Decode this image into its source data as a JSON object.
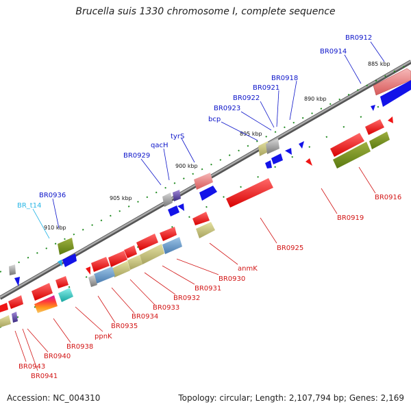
{
  "title": "Brucella suis 1330 chromosome I, complete sequence",
  "footer": {
    "accession": "Accession: NC_004310",
    "summary": "Topology: circular; Length: 2,107,794 bp; Genes: 2,169"
  },
  "colors": {
    "forward_label": "#0b13c9",
    "reverse_label": "#d21414",
    "rna_label": "#27b6e6",
    "cds_forward": "#1a1af0",
    "cds_reverse": "#ef1515",
    "backbone": "#8a8a8a"
  },
  "kbp_ticks": [
    "885 kbp",
    "890 kbp",
    "895 kbp",
    "900 kbp",
    "905 kbp",
    "910 kbp"
  ],
  "gene_labels_top": [
    "BR0912",
    "BR0914",
    "BR0918",
    "BR0921",
    "BR0922",
    "BR0923",
    "bcp",
    "tyrS",
    "qacH",
    "BR0929",
    "BR0936",
    "BR_t14"
  ],
  "gene_labels_bottom": [
    "BR0916",
    "BR0919",
    "BR0925",
    "anmK",
    "BR0930",
    "BR0931",
    "BR0932",
    "BR0933",
    "BR0934",
    "BR0935",
    "ppnK",
    "BR0938",
    "BR0940",
    "BR0943",
    "BR0941"
  ]
}
